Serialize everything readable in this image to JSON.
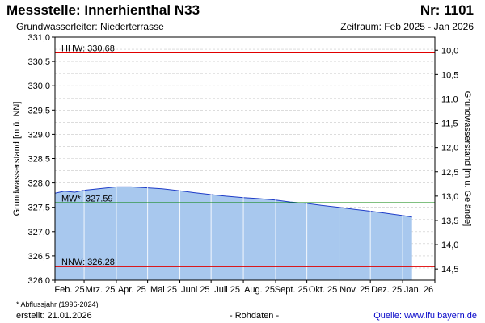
{
  "header": {
    "title": "Messstelle: Innerhienthal N33",
    "number": "Nr: 1101",
    "aquifer": "Grundwasserleiter:   Niederterrasse",
    "period": "Zeitraum: Feb 2025 - Jan 2026"
  },
  "footer": {
    "footnote": "* Abflussjahr (1996-2024)",
    "created": "erstellt:  21.01.2026",
    "raw": "- Rohdaten -",
    "source": "Quelle: www.lfu.bayern.de"
  },
  "colors": {
    "fill": "#a8c8ee",
    "line": "#1e3cc8",
    "hhw": "#e00000",
    "mw": "#008000",
    "nnw": "#e00000",
    "grid_x": "#ffffff",
    "grid_y": "#c8c8c8"
  },
  "chart_data": {
    "type": "area",
    "ylabel_left": "Grundwasserstand [m ü. NN]",
    "ylabel_right": "Grundwasserstand [m u. Gelände]",
    "ylim": [
      326.0,
      331.0
    ],
    "yticks_left": [
      "331,0",
      "330,5",
      "330,0",
      "329,5",
      "329,0",
      "328,5",
      "328,0",
      "327,5",
      "327,0",
      "326,5",
      "326,0"
    ],
    "y_right_ticks": [
      {
        "label": "10,0",
        "value": 330.73
      },
      {
        "label": "10,5",
        "value": 330.23
      },
      {
        "label": "11,0",
        "value": 329.73
      },
      {
        "label": "11,5",
        "value": 329.23
      },
      {
        "label": "12,0",
        "value": 328.73
      },
      {
        "label": "12,5",
        "value": 328.23
      },
      {
        "label": "13,0",
        "value": 327.73
      },
      {
        "label": "13,5",
        "value": 327.23
      },
      {
        "label": "14,0",
        "value": 326.73
      },
      {
        "label": "14,5",
        "value": 326.23
      }
    ],
    "xticks": [
      "Feb. 25",
      "Mrz. 25",
      "Apr. 25",
      "Mai 25",
      "Juni 25",
      "Juli 25",
      "Aug. 25",
      "Sept. 25",
      "Okt. 25",
      "Nov. 25",
      "Dez. 25",
      "Jan. 26"
    ],
    "reference_lines": [
      {
        "label": "HHW: 330.68",
        "value": 330.68,
        "colorKey": "hhw"
      },
      {
        "label": "MW*: 327.59",
        "value": 327.59,
        "colorKey": "mw"
      },
      {
        "label": "NNW: 326.28",
        "value": 326.28,
        "colorKey": "nnw"
      }
    ],
    "series": [
      {
        "x": [
          "2025-02-01",
          "2025-02-10",
          "2025-02-20",
          "2025-03-01",
          "2025-03-15",
          "2025-04-01",
          "2025-04-15",
          "2025-05-01",
          "2025-05-15",
          "2025-06-01",
          "2025-06-15",
          "2025-07-01",
          "2025-07-15",
          "2025-08-01",
          "2025-08-15",
          "2025-09-01",
          "2025-09-15",
          "2025-10-01",
          "2025-10-15",
          "2025-11-01",
          "2025-11-15",
          "2025-12-01",
          "2025-12-15",
          "2026-01-01",
          "2026-01-10"
        ],
        "values": [
          327.79,
          327.83,
          327.81,
          327.85,
          327.88,
          327.92,
          327.92,
          327.9,
          327.88,
          327.84,
          327.8,
          327.76,
          327.73,
          327.7,
          327.68,
          327.65,
          327.61,
          327.58,
          327.54,
          327.5,
          327.46,
          327.42,
          327.38,
          327.33,
          327.3
        ]
      }
    ]
  }
}
